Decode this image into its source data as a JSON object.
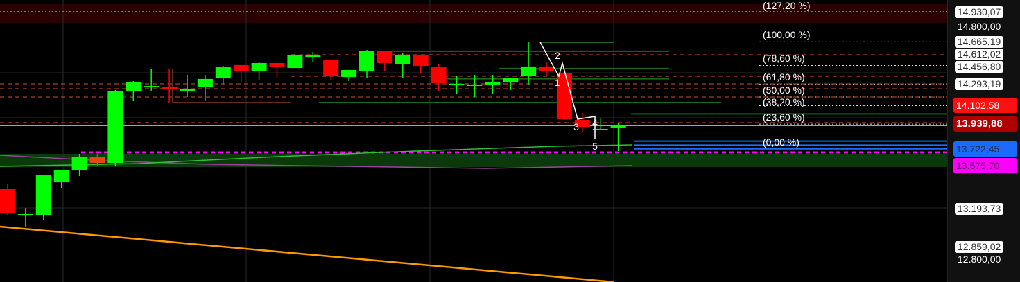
{
  "chart_data": {
    "type": "candlestick",
    "colors": {
      "up": "#00ff00",
      "down": "#ff0000",
      "background": "#000000",
      "resistance_band": "#2a0000",
      "support_band": "#0a3a0a",
      "current_price": "#c00000",
      "fib_0": "#1e6fff",
      "ma_support": "#ff00ff",
      "trendline": "#ff9900"
    },
    "candles": [
      {
        "o": 13366,
        "h": 13415,
        "l": 13140,
        "c": 13152
      },
      {
        "o": 13146,
        "h": 13201,
        "l": 13036,
        "c": 13146
      },
      {
        "o": 13134,
        "h": 13488,
        "l": 13097,
        "c": 13488
      },
      {
        "o": 13433,
        "h": 13537,
        "l": 13372,
        "c": 13537
      },
      {
        "o": 13537,
        "h": 13678,
        "l": 13482,
        "c": 13647
      },
      {
        "o": 13653,
        "h": 13678,
        "l": 13568,
        "c": 13598,
        "color": "#e04a10"
      },
      {
        "o": 13598,
        "h": 14240,
        "l": 13568,
        "c": 14228
      },
      {
        "o": 14228,
        "h": 14319,
        "l": 14142,
        "c": 14313
      },
      {
        "o": 14276,
        "h": 14423,
        "l": 14234,
        "c": 14276
      },
      {
        "o": 14270,
        "h": 14429,
        "l": 14130,
        "c": 14252
      },
      {
        "o": 14246,
        "h": 14374,
        "l": 14179,
        "c": 14246
      },
      {
        "o": 14264,
        "h": 14374,
        "l": 14142,
        "c": 14338
      },
      {
        "o": 14344,
        "h": 14454,
        "l": 14283,
        "c": 14441
      },
      {
        "o": 14460,
        "h": 14460,
        "l": 14313,
        "c": 14411
      },
      {
        "o": 14411,
        "h": 14484,
        "l": 14325,
        "c": 14478
      },
      {
        "o": 14478,
        "h": 14478,
        "l": 14350,
        "c": 14448
      },
      {
        "o": 14435,
        "h": 14558,
        "l": 14435,
        "c": 14551
      },
      {
        "o": 14545,
        "h": 14576,
        "l": 14484,
        "c": 14545
      },
      {
        "o": 14503,
        "h": 14503,
        "l": 14332,
        "c": 14362
      },
      {
        "o": 14356,
        "h": 14417,
        "l": 14319,
        "c": 14417
      },
      {
        "o": 14411,
        "h": 14594,
        "l": 14344,
        "c": 14588
      },
      {
        "o": 14588,
        "h": 14588,
        "l": 14405,
        "c": 14478
      },
      {
        "o": 14466,
        "h": 14570,
        "l": 14350,
        "c": 14545
      },
      {
        "o": 14545,
        "h": 14545,
        "l": 14386,
        "c": 14454
      },
      {
        "o": 14441,
        "h": 14466,
        "l": 14234,
        "c": 14301
      },
      {
        "o": 14295,
        "h": 14362,
        "l": 14209,
        "c": 14295
      },
      {
        "o": 14289,
        "h": 14374,
        "l": 14179,
        "c": 14289
      },
      {
        "o": 14289,
        "h": 14374,
        "l": 14203,
        "c": 14313
      },
      {
        "o": 14307,
        "h": 14350,
        "l": 14240,
        "c": 14344
      },
      {
        "o": 14362,
        "h": 14661,
        "l": 14283,
        "c": 14448
      },
      {
        "o": 14448,
        "h": 14484,
        "l": 14362,
        "c": 14405
      },
      {
        "o": 14386,
        "h": 14435,
        "l": 13977,
        "c": 13983
      },
      {
        "o": 13977,
        "h": 14038,
        "l": 13873,
        "c": 13916
      },
      {
        "o": 13898,
        "h": 13996,
        "l": 13886,
        "c": 13898
      },
      {
        "o": 13904,
        "h": 13947,
        "l": 13702,
        "c": 13928
      }
    ],
    "wave_labels": [
      "1",
      "2",
      "3",
      "4",
      "5"
    ],
    "fib_levels": [
      {
        "label": "(127,20 %)",
        "price": 14930.07
      },
      {
        "label": "(100,00 %)",
        "price": 14665.19
      },
      {
        "label": "(78,60 %)",
        "price": 14456.8
      },
      {
        "label": "(61,80 %)",
        "price": 14293.19
      },
      {
        "label": "(50,00 %)",
        "price": 14178.8
      },
      {
        "label": "(38,20 %)",
        "price": 14102.58
      },
      {
        "label": "(23,60 %)",
        "price": 13939.88
      },
      {
        "label": "(0,00 %)",
        "price": 13722.45
      }
    ],
    "price_axis": [
      {
        "text": "14.930,07",
        "price": 14930.07,
        "style": "box"
      },
      {
        "text": "14.800,00",
        "price": 14800.0,
        "style": "plain"
      },
      {
        "text": "14.612,02",
        "price": 14612.02,
        "style": "box"
      },
      {
        "text": "14.665,19",
        "price": 14665.19,
        "style": "box"
      },
      {
        "text": "14.456,80",
        "price": 14456.8,
        "style": "box"
      },
      {
        "text": "14.293,19",
        "price": 14293.19,
        "style": "box"
      },
      {
        "text": "14.102,58",
        "price": 14102.58,
        "style": "red"
      },
      {
        "text": "13.939,88",
        "price": 13939.88,
        "style": "current"
      },
      {
        "text": "13.722,45",
        "price": 13722.45,
        "style": "blue"
      },
      {
        "text": "13.575,70",
        "price": 13575.7,
        "style": "magenta"
      },
      {
        "text": "13.193,73",
        "price": 13193.73,
        "style": "box"
      },
      {
        "text": "12.859,02",
        "price": 12859.02,
        "style": "box"
      },
      {
        "text": "12.800,00",
        "price": 12800.0,
        "style": "plain"
      }
    ]
  }
}
